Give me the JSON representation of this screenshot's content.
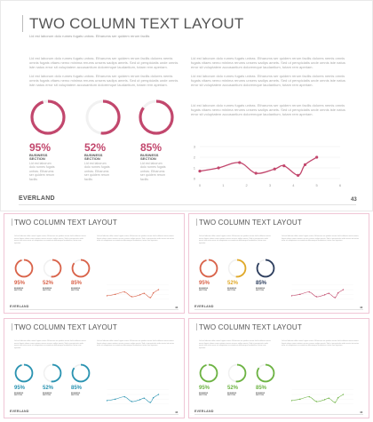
{
  "slide": {
    "title": "TWO COLUMN TEXT LAYOUT",
    "subtitle": "Lid est laborum dolo rumes fugats untras. Etharums ser quidem rerum facilis",
    "para_a": "Lid est laborum dolo rumes fugats untras. Etharums ser quidem rerum facilis dolores nemis omnis fugats vitaes nemo minima rerums unsers sadips amets. Sed ut perspiciatis unde omnis iste natus error sit voluptatem accusantium doloremque laudantium, totam rem aperiam.",
    "para_b": "Lid est laborum dolo rumes fugats untras. Etharums ser quidem rerum facilis dolores nemis omnis fugats vitaes nemo minima rerums unsers sadips amets. Sed ut perspiciatis unde omnis iste natus error sit voluptatem accusantium doloremque laudantium, totam rem aperiam.",
    "stat_label": "BUSINESS SECTION",
    "stat_desc": "Lid est laborum dolo rumes fugats untras. Etharums ser quidem rerum facilis",
    "stats": [
      {
        "percent": "95%",
        "value": 95
      },
      {
        "percent": "52%",
        "value": 52
      },
      {
        "percent": "85%",
        "value": 85
      }
    ],
    "brand": "EVERLAND",
    "page_number": "43"
  },
  "themes": {
    "main": {
      "accent": "#c2476d",
      "rings": [
        "#c2476d",
        "#c2476d",
        "#c2476d"
      ]
    },
    "t1": {
      "accent": "#d9634a",
      "rings": [
        "#d9634a",
        "#d9634a",
        "#d9634a"
      ]
    },
    "t2": {
      "accent": "#c0476a",
      "rings": [
        "#d9634a",
        "#e0a92a",
        "#2d3e5e"
      ]
    },
    "t3": {
      "accent": "#2a93b1",
      "rings": [
        "#2a93b1",
        "#2a93b1",
        "#2a93b1"
      ]
    },
    "t4": {
      "accent": "#6db343",
      "rings": [
        "#6db343",
        "#6db343",
        "#6db343"
      ]
    }
  },
  "chart_data": {
    "type": "line",
    "x": [
      0,
      0.8,
      1.7,
      2.4,
      3.2,
      3.6,
      4.2,
      4.5,
      5.0
    ],
    "y": [
      0.7,
      1.0,
      1.5,
      0.5,
      0.9,
      1.2,
      0.3,
      1.3,
      2.0
    ],
    "xlim": [
      0,
      6
    ],
    "ylim": [
      0,
      3
    ],
    "xticks": [
      0,
      1,
      2,
      3,
      4,
      5,
      6
    ],
    "yticks": [
      0,
      1,
      2,
      3
    ],
    "grid": true
  }
}
